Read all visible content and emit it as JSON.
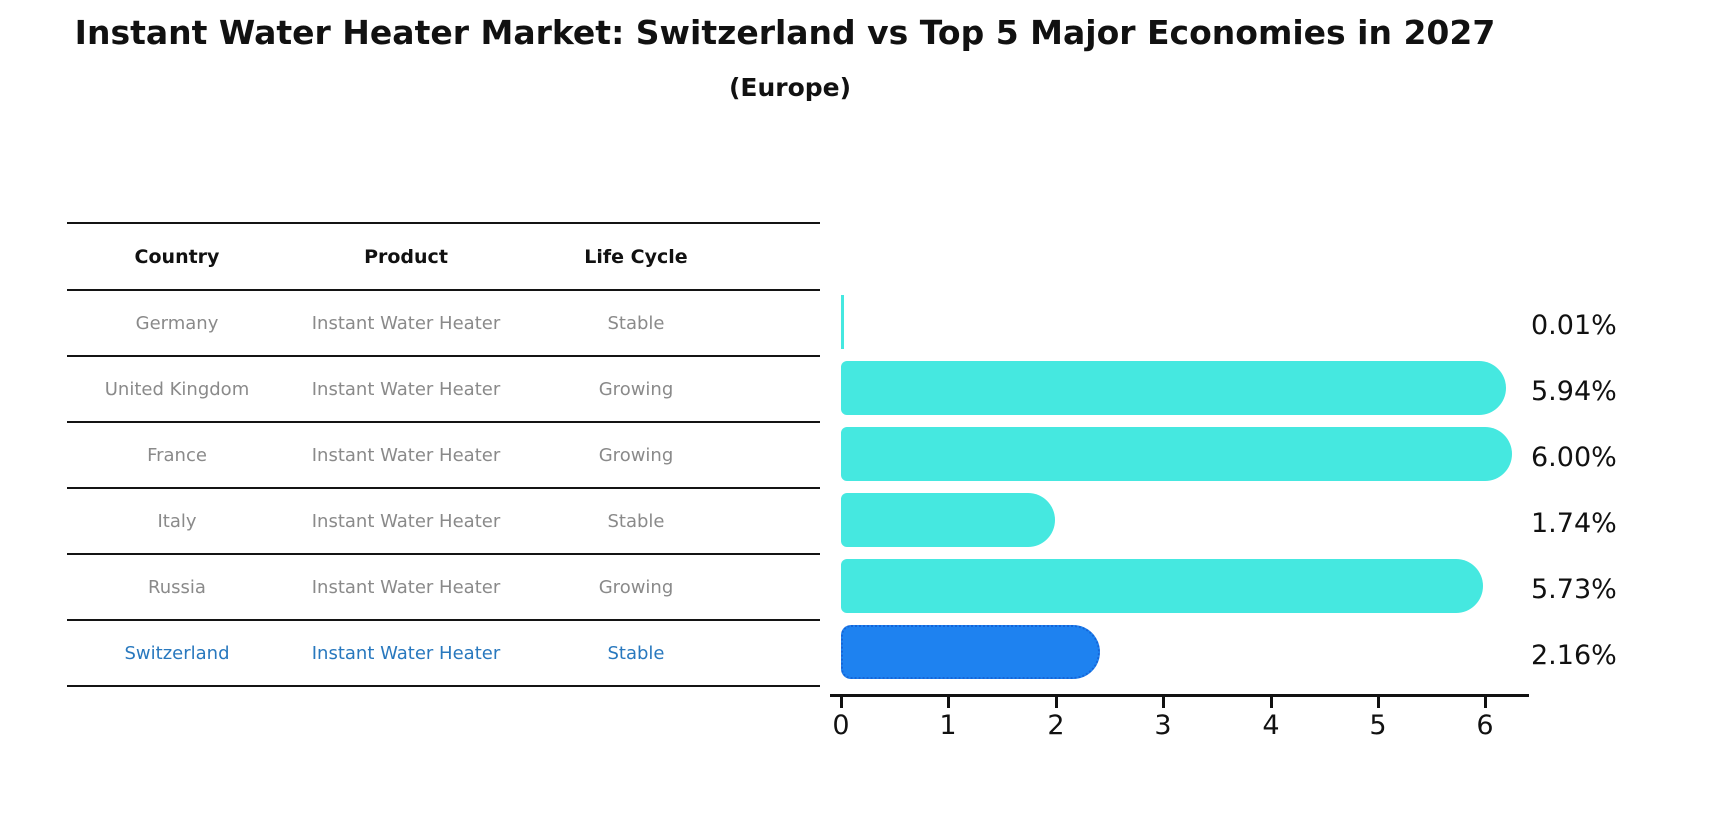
{
  "title": "Instant Water Heater Market: Switzerland vs Top 5 Major Economies in 2027",
  "subtitle": "(Europe)",
  "table": {
    "headers": [
      "Country",
      "Product",
      "Life Cycle"
    ],
    "rows": [
      {
        "country": "Germany",
        "product": "Instant Water Heater",
        "life_cycle": "Stable",
        "highlighted": false
      },
      {
        "country": "United Kingdom",
        "product": "Instant Water Heater",
        "life_cycle": "Growing",
        "highlighted": false
      },
      {
        "country": "France",
        "product": "Instant Water Heater",
        "life_cycle": "Growing",
        "highlighted": false
      },
      {
        "country": "Italy",
        "product": "Instant Water Heater",
        "life_cycle": "Stable",
        "highlighted": false
      },
      {
        "country": "Russia",
        "product": "Instant Water Heater",
        "life_cycle": "Growing",
        "highlighted": false
      },
      {
        "country": "Switzerland",
        "product": "Instant Water Heater",
        "life_cycle": "Stable",
        "highlighted": true
      }
    ]
  },
  "chart_data": {
    "type": "bar",
    "orientation": "horizontal",
    "title": "Instant Water Heater Market: Switzerland vs Top 5 Major Economies in 2027 (Europe)",
    "categories": [
      "Germany",
      "United Kingdom",
      "France",
      "Italy",
      "Russia",
      "Switzerland"
    ],
    "values": [
      0.01,
      5.94,
      6.0,
      1.74,
      5.73,
      2.16
    ],
    "value_labels": [
      "0.01%",
      "5.94%",
      "6.00%",
      "1.74%",
      "5.73%",
      "2.16%"
    ],
    "highlight_index": 5,
    "x_ticks": [
      "0",
      "1",
      "2",
      "3",
      "4",
      "5",
      "6"
    ],
    "xlim": [
      0,
      6.4
    ],
    "grid": false,
    "legend": false,
    "unit": "percent"
  },
  "colors": {
    "bar": "#45e8e0",
    "highlight_bar": "#1e82f0",
    "highlight_bar_border": "#1565d8",
    "highlight_text": "#2878be",
    "muted_text": "#8a8a8a",
    "axis": "#111111"
  }
}
